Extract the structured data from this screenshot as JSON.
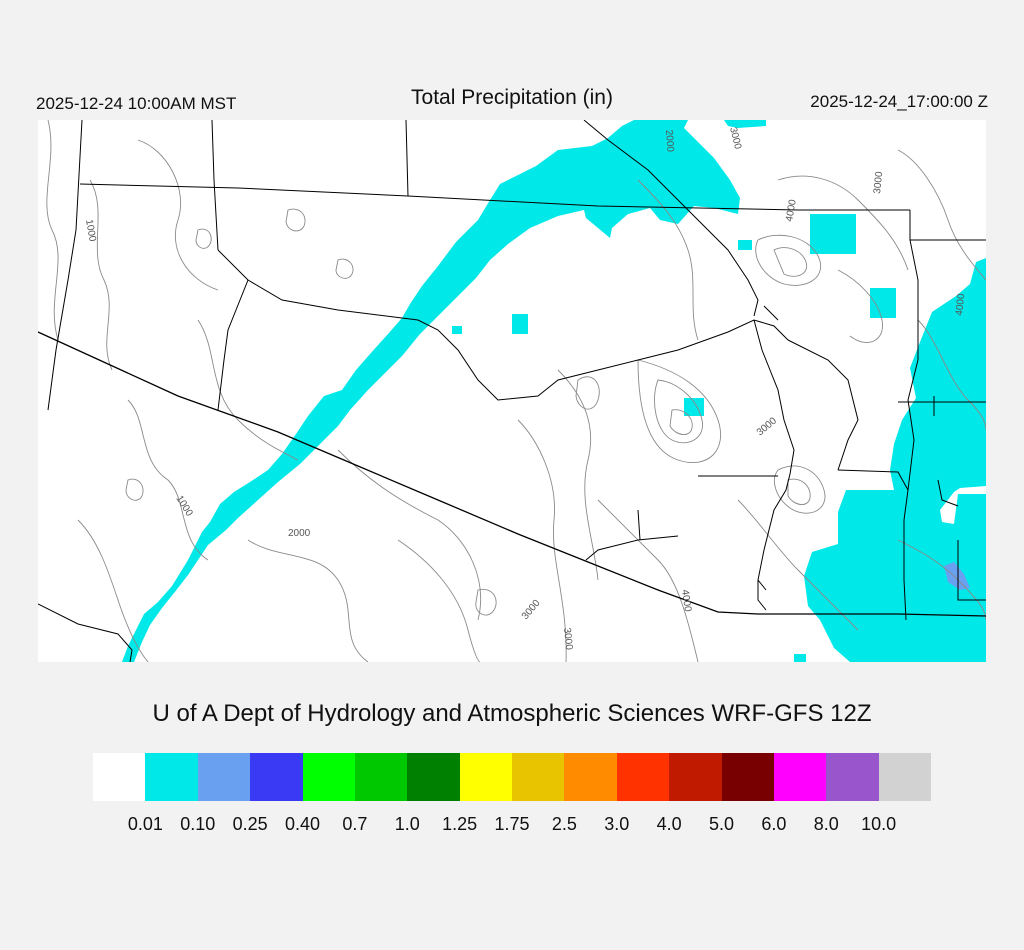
{
  "header": {
    "valid_local": "2025-12-24 10:00AM MST",
    "title": "Total Precipitation (in)",
    "valid_utc": "2025-12-24_17:00:00 Z"
  },
  "credit": "U of A Dept of Hydrology and Atmospheric Sciences WRF-GFS 12Z",
  "colors": {
    "precip_light": "#00e8e8",
    "precip_patch": "#6aa0f0",
    "border_line": "#000000",
    "contour_line": "#888888"
  },
  "map": {
    "contour_labels": [
      "1000",
      "1000",
      "2000",
      "2000",
      "3000",
      "3000",
      "3000",
      "3000",
      "4000",
      "4000",
      "4000",
      "3000"
    ]
  },
  "colorbar": {
    "colors": [
      "#ffffff",
      "#00e8e8",
      "#6aa0f0",
      "#3a3af5",
      "#00ff00",
      "#00c800",
      "#008000",
      "#ffff00",
      "#e8c400",
      "#ff8c00",
      "#ff3200",
      "#c01a00",
      "#780000",
      "#ff00ff",
      "#9955cc",
      "#d2d2d2"
    ],
    "labels": [
      "0.01",
      "0.10",
      "0.25",
      "0.40",
      "0.7",
      "1.0",
      "1.25",
      "1.75",
      "2.5",
      "3.0",
      "4.0",
      "5.0",
      "6.0",
      "8.0",
      "10.0"
    ]
  }
}
